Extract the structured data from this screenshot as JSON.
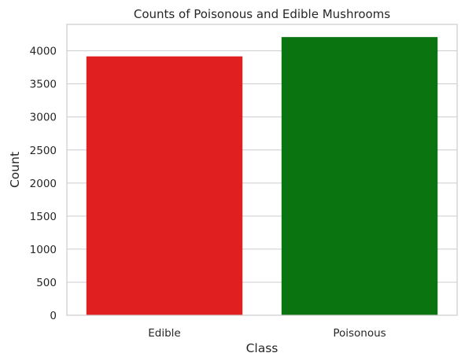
{
  "chart_data": {
    "type": "bar",
    "title": "Counts of Poisonous and Edible Mushrooms",
    "xlabel": "Class",
    "ylabel": "Count",
    "categories": [
      "Edible",
      "Poisonous"
    ],
    "values": [
      3916,
      4208
    ],
    "colors": [
      "#e02020",
      "#0a7510"
    ],
    "ylim": [
      0,
      4400
    ],
    "yticks": [
      0,
      500,
      1000,
      1500,
      2000,
      2500,
      3000,
      3500,
      4000
    ],
    "grid": true,
    "grid_axis": "y"
  }
}
